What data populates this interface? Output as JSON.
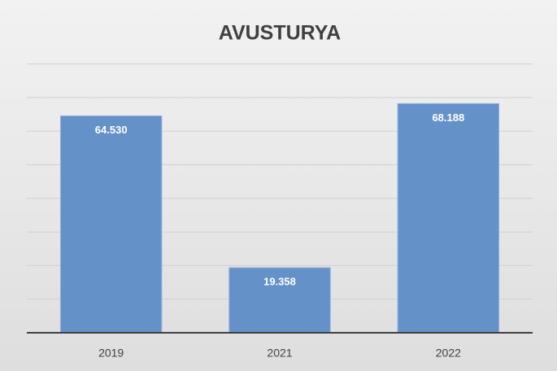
{
  "chart_data": {
    "type": "bar",
    "title": "AVUSTURYA",
    "categories": [
      "2019",
      "2021",
      "2022"
    ],
    "values": [
      64530,
      19358,
      68188
    ],
    "value_labels": [
      "64.530",
      "19.358",
      "68.188"
    ],
    "color": "#6591c9",
    "ylim": [
      0,
      80000
    ],
    "yticks": [
      0,
      10000,
      20000,
      30000,
      40000,
      50000,
      60000,
      70000,
      80000
    ],
    "grid": true
  }
}
